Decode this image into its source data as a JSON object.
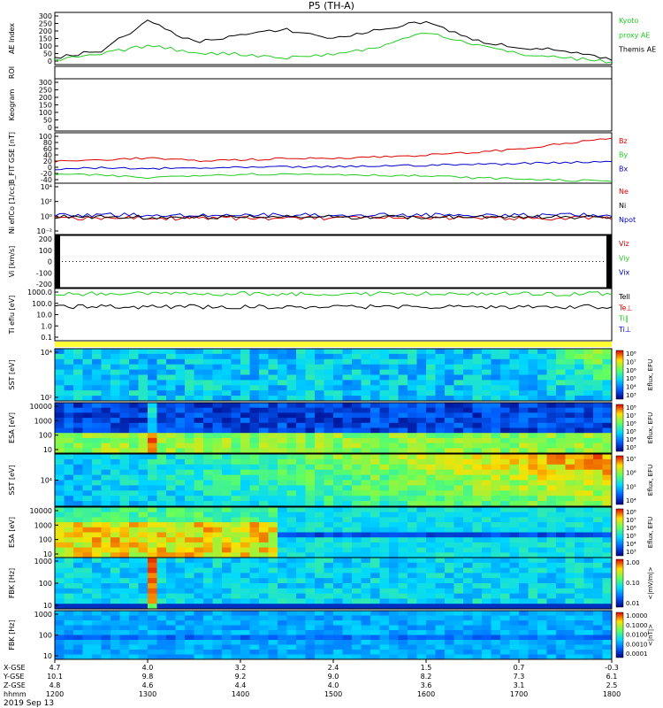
{
  "title": "P5 (TH-A)",
  "date_label": "2019 Sep 13",
  "time_axis": {
    "ticks": [
      "1200",
      "1300",
      "1400",
      "1500",
      "1600",
      "1700",
      "1800"
    ],
    "rows": [
      {
        "name": "X-GSE",
        "values": [
          "4.7",
          "4.0",
          "3.2",
          "2.4",
          "1.5",
          "0.7",
          "-0.3"
        ]
      },
      {
        "name": "Y-GSE",
        "values": [
          "10.1",
          "9.8",
          "9.2",
          "9.0",
          "8.2",
          "7.3",
          "6.1"
        ]
      },
      {
        "name": "Z-GSE",
        "values": [
          "4.8",
          "4.6",
          "4.4",
          "4.0",
          "3.6",
          "3.1",
          "2.5"
        ]
      },
      {
        "name": "hhmm",
        "values": [],
        "label": "hhmm"
      }
    ]
  },
  "panels": [
    {
      "id": "ae",
      "ylabel": "AE Index",
      "yticks": [
        "300",
        "250",
        "200",
        "150",
        "100",
        "50",
        "0"
      ],
      "legend": [
        {
          "text": "Kyoto",
          "color": "#22cc22"
        },
        {
          "text": "proxy AE",
          "color": "#22cc22"
        },
        {
          "text": "Themis AE",
          "color": "#000000"
        }
      ]
    },
    {
      "id": "roi",
      "ylabel": "ROI",
      "yticks": []
    },
    {
      "id": "keogram",
      "ylabel": "Keogram",
      "yticks": [
        "300",
        "250",
        "200",
        "150",
        "100",
        "50",
        "0"
      ]
    },
    {
      "id": "bfield",
      "ylabel": "B_FIT GSE [nT]",
      "yticks": [
        "100",
        "80",
        "60",
        "40",
        "20",
        "0",
        "-20",
        "-40"
      ],
      "legend": [
        {
          "text": "Bz",
          "color": "#dd0000"
        },
        {
          "text": "By",
          "color": "#22cc22"
        },
        {
          "text": "Bx",
          "color": "#0000cc"
        }
      ]
    },
    {
      "id": "density",
      "ylabel": "Ni eflCo [1/cc]",
      "yticks": [
        "10⁴",
        "10²",
        "10⁰",
        "10⁻²"
      ],
      "legend": [
        {
          "text": "Ne",
          "color": "#dd0000"
        },
        {
          "text": "Ni",
          "color": "#000000"
        },
        {
          "text": "Npot",
          "color": "#0000cc"
        }
      ]
    },
    {
      "id": "velocity",
      "ylabel": "Vi [km/s]",
      "yticks": [
        "200",
        "100",
        "0",
        "-100",
        "-200"
      ],
      "legend": [
        {
          "text": "Viz",
          "color": "#dd0000"
        },
        {
          "text": "Viy",
          "color": "#22cc22"
        },
        {
          "text": "Vix",
          "color": "#0000cc"
        }
      ]
    },
    {
      "id": "temp",
      "ylabel": "Ti efiu [eV]",
      "yticks": [
        "1000.0",
        "100.0",
        "10.0",
        "1.0",
        "0.1"
      ],
      "legend": [
        {
          "text": "Tell",
          "color": "#000000"
        },
        {
          "text": "Te⊥",
          "color": "#dd0000"
        },
        {
          "text": "Ti∥",
          "color": "#22cc22"
        },
        {
          "text": "Ti⊥",
          "color": "#0000cc"
        }
      ]
    },
    {
      "id": "sst_e",
      "ylabel": "SST [eV]",
      "yticks": [
        "10⁴",
        "10²"
      ],
      "cbar": {
        "label": "Eflux, EFU",
        "ticks": [
          "10⁸",
          "10⁷",
          "10⁶",
          "10⁵",
          "10⁴",
          "10³"
        ]
      }
    },
    {
      "id": "esa_e",
      "ylabel": "ESA [eV]",
      "yticks": [
        "10000",
        "1000",
        "100",
        "10"
      ],
      "cbar": {
        "label": "Eflux, EFU",
        "ticks": [
          "10⁸",
          "10⁷",
          "10⁶",
          "10⁵",
          "10⁴",
          "10³"
        ]
      }
    },
    {
      "id": "sst_i",
      "ylabel": "SST [eV]",
      "yticks": [
        "10⁴"
      ],
      "cbar": {
        "label": "Eflux, EFU",
        "ticks": [
          "10⁷",
          "10⁶",
          "10⁵",
          "10⁴"
        ]
      }
    },
    {
      "id": "esa_i",
      "ylabel": "ESA [eV]",
      "yticks": [
        "10000",
        "1000",
        "100",
        "10"
      ],
      "cbar": {
        "label": "Eflux, EFU",
        "ticks": [
          "10⁸",
          "10⁷",
          "10⁶",
          "10⁵",
          "10⁴",
          "10³"
        ]
      }
    },
    {
      "id": "fbk_e",
      "ylabel": "FBK [Hz]",
      "yticks": [
        "1000",
        "100",
        "10"
      ],
      "cbar": {
        "label": "<|mV/m|>",
        "ticks": [
          "1.00",
          "0.10",
          "0.01"
        ]
      }
    },
    {
      "id": "fbk_b",
      "ylabel": "FBK [Hz]",
      "yticks": [
        "1000",
        "100",
        "10"
      ],
      "cbar": {
        "label": "<|nT|>",
        "ticks": [
          "1.0000",
          "0.1000",
          "0.0100",
          "0.0010",
          "0.0001"
        ]
      }
    }
  ],
  "chart_data": {
    "type": "line",
    "x_hours": [
      12,
      12.5,
      13,
      13.5,
      14,
      14.5,
      15,
      15.5,
      16,
      16.5,
      17,
      17.5,
      18
    ],
    "series": [
      {
        "name": "Themis AE",
        "values": [
          40,
          80,
          250,
          130,
          170,
          200,
          150,
          200,
          250,
          140,
          100,
          80,
          25
        ]
      },
      {
        "name": "Kyoto proxy AE",
        "values": [
          25,
          60,
          110,
          70,
          60,
          40,
          60,
          100,
          190,
          120,
          60,
          40,
          15
        ]
      },
      {
        "name": "Bz",
        "values": [
          20,
          25,
          30,
          22,
          25,
          28,
          30,
          33,
          38,
          45,
          55,
          70,
          85
        ]
      },
      {
        "name": "By",
        "values": [
          -15,
          -18,
          -25,
          -18,
          -15,
          -15,
          -15,
          -18,
          -20,
          -25,
          -28,
          -32,
          -35
        ]
      },
      {
        "name": "Bx",
        "values": [
          0,
          2,
          0,
          2,
          3,
          5,
          5,
          8,
          10,
          12,
          15,
          18,
          20
        ]
      }
    ],
    "ylim_ae": [
      0,
      300
    ],
    "ylim_b": [
      -40,
      100
    ]
  }
}
